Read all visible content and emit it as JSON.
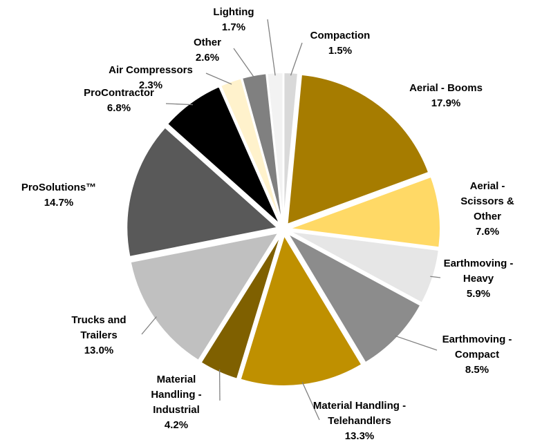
{
  "chart_data": {
    "type": "pie",
    "categories": [
      "Compaction",
      "Aerial - Booms",
      "Aerial - Scissors & Other",
      "Earthmoving - Heavy",
      "Earthmoving - Compact",
      "Material Handling - Telehandlers",
      "Material Handling - Industrial",
      "Trucks and Trailers",
      "ProSolutions™",
      "ProContractor",
      "Air Compressors",
      "Other",
      "Lighting"
    ],
    "values": [
      1.5,
      17.9,
      7.6,
      5.9,
      8.5,
      13.3,
      4.2,
      13.0,
      14.7,
      6.8,
      2.3,
      2.6,
      1.7
    ],
    "value_labels": [
      "1.5%",
      "17.9%",
      "7.6%",
      "5.9%",
      "8.5%",
      "13.3%",
      "4.2%",
      "13.0%",
      "14.7%",
      "6.8%",
      "2.3%",
      "2.6%",
      "1.7%"
    ],
    "colors": [
      "#d9d9d9",
      "#a67c00",
      "#ffd966",
      "#e6e6e6",
      "#8c8c8c",
      "#bf9000",
      "#7f6000",
      "#c0c0c0",
      "#595959",
      "#000000",
      "#fff2cc",
      "#808080",
      "#f2f2f2"
    ]
  }
}
